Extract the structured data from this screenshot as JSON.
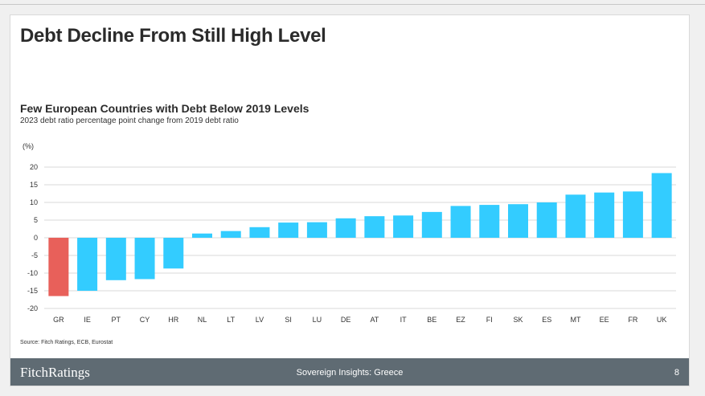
{
  "page": {
    "title": "Debt Decline From Still High Level",
    "source": "Source: Fitch Ratings, ECB, Eurostat",
    "footer": {
      "logo": "FitchRatings",
      "center": "Sovereign Insights: Greece",
      "page_number": "8"
    }
  },
  "colors": {
    "highlight": "#e8605a",
    "bar": "#33ccff",
    "grid": "#d9d9d9",
    "footer_bg": "#5f6b73"
  },
  "chart_data": {
    "type": "bar",
    "title": "Few European Countries with Debt Below 2019 Levels",
    "subtitle": "2023 debt ratio percentage point change from 2019 debt ratio",
    "unit_label": "(%)",
    "categories": [
      "GR",
      "IE",
      "PT",
      "CY",
      "HR",
      "NL",
      "LT",
      "LV",
      "SI",
      "LU",
      "DE",
      "AT",
      "IT",
      "BE",
      "EZ",
      "FI",
      "SK",
      "ES",
      "MT",
      "EE",
      "FR",
      "UK"
    ],
    "values": [
      -16.5,
      -15,
      -12,
      -11.7,
      -8.7,
      1.2,
      1.9,
      3.0,
      4.3,
      4.4,
      5.5,
      6.1,
      6.3,
      7.3,
      9.0,
      9.3,
      9.5,
      10.0,
      12.2,
      12.8,
      13.1,
      18.3
    ],
    "highlight_categories": [
      "GR"
    ],
    "ylim": [
      -20,
      20
    ],
    "yticks": [
      20,
      15,
      10,
      5,
      0,
      -5,
      -10,
      -15,
      -20
    ],
    "grid": true,
    "legend": "none"
  }
}
